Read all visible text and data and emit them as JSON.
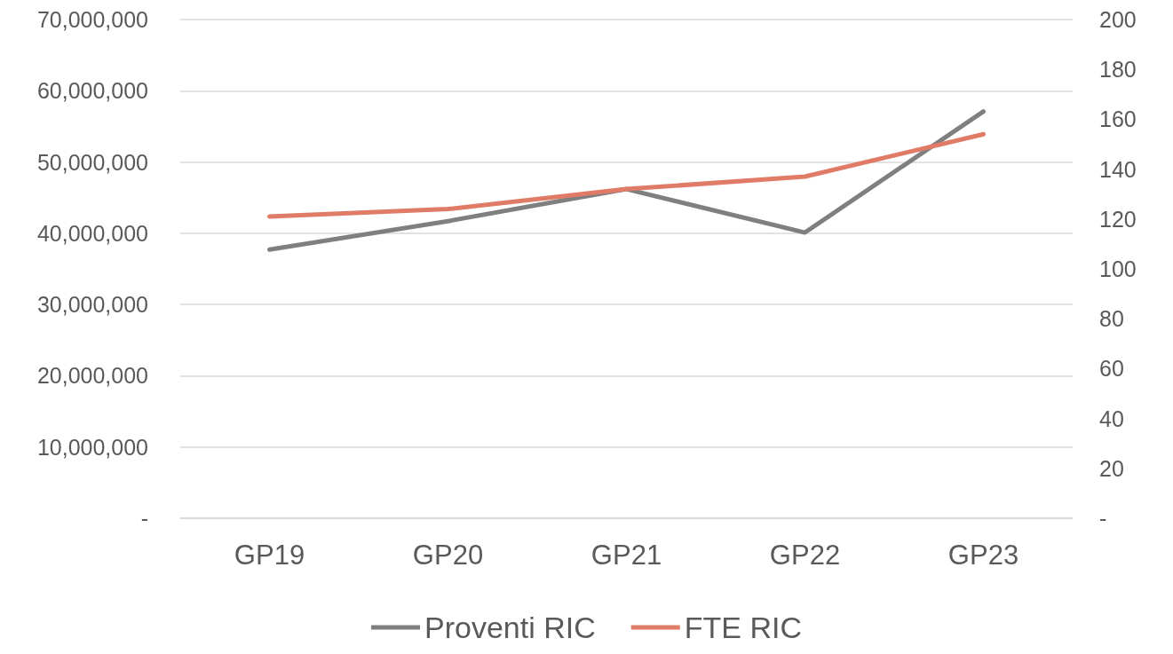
{
  "chart_data": {
    "type": "line",
    "categories": [
      "GP19",
      "GP20",
      "GP21",
      "GP22",
      "GP23"
    ],
    "series": [
      {
        "name": "Proventi RIC",
        "color": "#7f7f7f",
        "values": [
          37700000,
          41700000,
          46200000,
          40100000,
          57100000
        ]
      },
      {
        "name": "FTE RIC",
        "color": "#e07b67",
        "values": [
          121,
          124,
          132,
          137,
          154
        ],
        "axis": "y2"
      }
    ],
    "ylim": [
      0,
      70000000
    ],
    "yticks": [
      {
        "value": 0,
        "label": "-"
      },
      {
        "value": 10000000,
        "label": "10,000,000"
      },
      {
        "value": 20000000,
        "label": "20,000,000"
      },
      {
        "value": 30000000,
        "label": "30,000,000"
      },
      {
        "value": 40000000,
        "label": "40,000,000"
      },
      {
        "value": 50000000,
        "label": "50,000,000"
      },
      {
        "value": 60000000,
        "label": "60,000,000"
      },
      {
        "value": 70000000,
        "label": "70,000,000"
      }
    ],
    "y2lim": [
      0,
      200
    ],
    "y2ticks": [
      {
        "value": 0,
        "label": "-"
      },
      20,
      40,
      60,
      80,
      100,
      120,
      140,
      160,
      180,
      200
    ],
    "grid": "y",
    "legend": "bottom",
    "marker": "none",
    "line_style": "solid"
  }
}
